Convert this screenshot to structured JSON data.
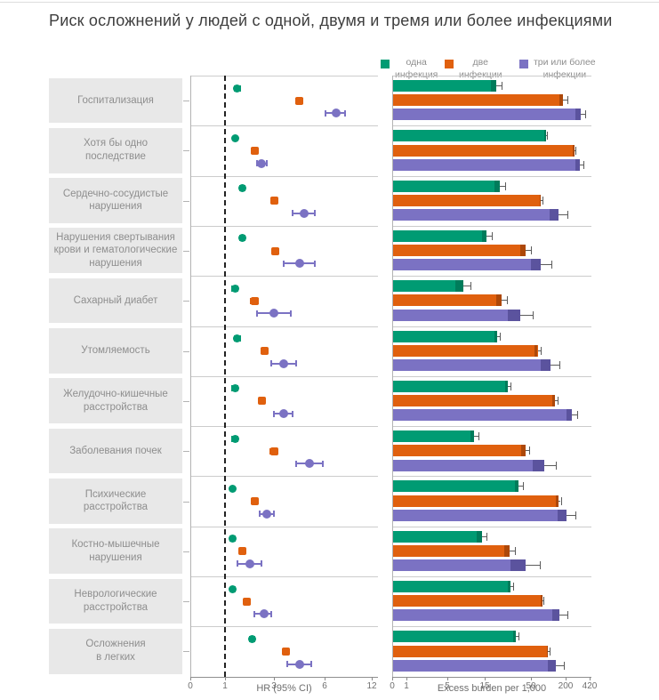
{
  "page": {
    "title": "Риск осложнений у людей с одной, двумя и тремя или более инфекциями"
  },
  "chart_data": {
    "type": "forest+bar",
    "title": "Риск осложнений у людей с одной, двумя и тремя или более инфекциями",
    "legend_position": "top-right",
    "legend": [
      {
        "label": "одна\nинфекция",
        "color": "#009b73"
      },
      {
        "label": "две\nинфекции",
        "color": "#e0600e"
      },
      {
        "label": "три или более\nинфекции",
        "color": "#7b72c3"
      }
    ],
    "categories": [
      "Госпитализация",
      "Хотя бы одно\nпоследствие",
      "Сердечно-сосудистые\nнарушения",
      "Нарушения свертывания\nкрови и гематологические\nнарушения",
      "Сахарный диабет",
      "Утомляемость",
      "Желудочно-кишечные\nрасстройства",
      "Заболевания почек",
      "Психические\nрасстройства",
      "Костно-мышечные\nнарушения",
      "Неврологические\nрасстройства",
      "Осложнения\nв легких"
    ],
    "hr_panel": {
      "type": "scatter",
      "xlabel": "HR (95% CI)",
      "xticks": [
        0,
        1,
        3,
        6,
        12
      ],
      "reference_line": 1,
      "series": [
        {
          "name": "одна инфекция",
          "color": "#009b73",
          "shape": "circle",
          "values": [
            1.5,
            1.4,
            1.7,
            1.7,
            1.4,
            1.5,
            1.4,
            1.4,
            1.3,
            1.3,
            1.3,
            2.1
          ],
          "ci_lo": [
            1.4,
            1.35,
            1.6,
            1.6,
            1.3,
            1.4,
            1.3,
            1.3,
            1.25,
            1.2,
            1.25,
            2.0
          ],
          "ci_hi": [
            1.6,
            1.45,
            1.8,
            1.8,
            1.5,
            1.6,
            1.5,
            1.5,
            1.35,
            1.4,
            1.4,
            2.2
          ]
        },
        {
          "name": "две инфекции",
          "color": "#e0600e",
          "shape": "square",
          "values": [
            4.5,
            2.2,
            3.0,
            3.1,
            2.2,
            2.6,
            2.5,
            3.0,
            2.2,
            1.7,
            1.9,
            3.7
          ],
          "ci_lo": [
            4.3,
            2.1,
            2.9,
            2.95,
            2.05,
            2.5,
            2.4,
            2.85,
            2.1,
            1.6,
            1.8,
            3.55
          ],
          "ci_hi": [
            4.7,
            2.3,
            3.1,
            3.25,
            2.35,
            2.7,
            2.6,
            3.15,
            2.3,
            1.8,
            2.0,
            3.85
          ]
        },
        {
          "name": "три или более инфекции",
          "color": "#7b72c3",
          "shape": "circle",
          "values": [
            7.5,
            2.5,
            4.8,
            4.5,
            3.0,
            3.6,
            3.6,
            5.1,
            2.7,
            2.0,
            2.6,
            4.5
          ],
          "ci_lo": [
            6.1,
            2.3,
            4.1,
            3.6,
            2.3,
            2.9,
            3.0,
            4.3,
            2.4,
            1.5,
            2.2,
            3.8
          ],
          "ci_hi": [
            8.6,
            2.7,
            5.4,
            5.4,
            4.0,
            4.3,
            4.1,
            5.9,
            3.0,
            2.5,
            2.9,
            5.2
          ]
        }
      ]
    },
    "burden_panel": {
      "type": "bar",
      "xlabel": "Excess burden per 1,000",
      "xticks": [
        0,
        1,
        5,
        15,
        50,
        200,
        420
      ],
      "series": [
        {
          "name": "одна инфекция",
          "color": "#009b73",
          "values": [
            23,
            110,
            26,
            16,
            9,
            24,
            32,
            12,
            40,
            14,
            34,
            38
          ],
          "ci_hi": [
            27,
            116,
            30,
            20,
            11,
            26,
            34,
            13,
            43,
            16,
            36,
            40
          ]
        },
        {
          "name": "две инфекции",
          "color": "#e0600e",
          "values": [
            185,
            270,
            90,
            45,
            27,
            75,
            150,
            45,
            165,
            33,
            95,
            120
          ],
          "ci_hi": [
            205,
            282,
            96,
            49,
            31,
            90,
            163,
            48,
            175,
            37,
            101,
            126
          ]
        },
        {
          "name": "три или более инфекции",
          "color": "#7b72c3",
          "values": [
            330,
            320,
            165,
            90,
            41,
            130,
            250,
            105,
            200,
            45,
            170,
            155
          ],
          "ci_hi": [
            375,
            355,
            205,
            135,
            52,
            170,
            300,
            155,
            280,
            85,
            205,
            190
          ]
        }
      ]
    }
  }
}
